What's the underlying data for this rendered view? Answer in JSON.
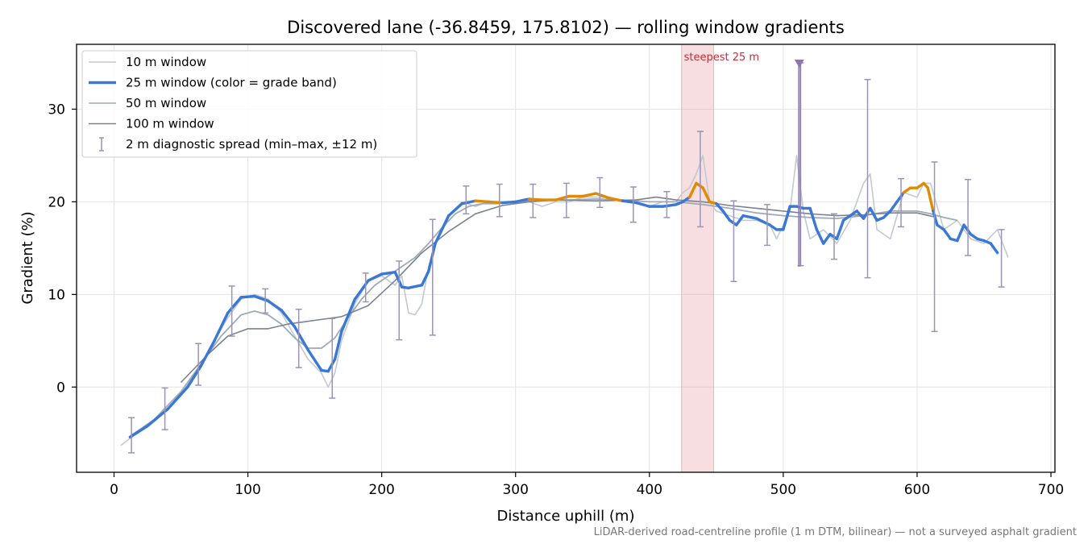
{
  "chart_data": {
    "type": "line",
    "title": "Discovered lane (-36.8459, 175.8102) — rolling window gradients",
    "xlabel": "Distance uphill (m)",
    "ylabel": "Gradient (%)",
    "xlim": [
      -28,
      703
    ],
    "ylim": [
      -9.2,
      37
    ],
    "x_ticks": [
      0,
      100,
      200,
      300,
      400,
      500,
      600,
      700
    ],
    "y_ticks": [
      0,
      10,
      20,
      30
    ],
    "grid": true,
    "legend_position": "top-left",
    "footnote": "LiDAR-derived road-centreline profile (1 m DTM, bilinear) — not a surveyed asphalt gradient",
    "colors": {
      "w10": "#c3c9d1",
      "w25_blue": "#3a78d6",
      "w25_orange": "#e08a00",
      "w50": "#a0aab6",
      "w100": "#7b8290",
      "spread": "#9b93b8",
      "steep_band": "#e8a0a8",
      "steep_text": "#c0303a",
      "marker": "#8a78b0"
    },
    "legend": [
      {
        "key": "w10",
        "label": "10 m window"
      },
      {
        "key": "w25",
        "label": "25 m window (color = grade band)"
      },
      {
        "key": "w50",
        "label": "50 m window"
      },
      {
        "key": "w100",
        "label": "100 m window"
      },
      {
        "key": "spread",
        "label": "2 m diagnostic spread (min–max, ±12 m)"
      }
    ],
    "annotations": {
      "steepest_label": "steepest 25 m",
      "steepest_band": [
        424,
        448
      ],
      "marker": {
        "x": 512,
        "y": 35,
        "ymin": 13,
        "ymax": 35
      }
    },
    "series": [
      {
        "key": "w10",
        "x": [
          5,
          15,
          25,
          35,
          45,
          55,
          65,
          75,
          85,
          95,
          105,
          115,
          125,
          135,
          145,
          155,
          160,
          165,
          170,
          180,
          190,
          200,
          210,
          215,
          220,
          225,
          230,
          235,
          240,
          250,
          260,
          270,
          280,
          290,
          300,
          310,
          320,
          330,
          340,
          350,
          360,
          370,
          380,
          390,
          400,
          410,
          420,
          425,
          430,
          435,
          440,
          445,
          450,
          460,
          470,
          480,
          490,
          495,
          505,
          510,
          515,
          520,
          530,
          540,
          550,
          560,
          565,
          570,
          580,
          590,
          600,
          605,
          610,
          620,
          630,
          640,
          650,
          660,
          668
        ],
        "y": [
          -6.3,
          -5.2,
          -4.2,
          -3,
          -1.5,
          0.3,
          2.5,
          5,
          7.5,
          9.5,
          10,
          9.5,
          8,
          5.5,
          3,
          1.5,
          0,
          1.5,
          5,
          9,
          11.5,
          12,
          11,
          12,
          8,
          7.8,
          9,
          13,
          15.5,
          18.5,
          20,
          19.5,
          20,
          20,
          20,
          20,
          19.5,
          20,
          20,
          20.5,
          20.5,
          20.5,
          20,
          20,
          19.5,
          20,
          20,
          21,
          21.5,
          23,
          25,
          20,
          19,
          18.5,
          18,
          18,
          17.5,
          16,
          19,
          25,
          19,
          16,
          17,
          15.5,
          18,
          22,
          23,
          17,
          16,
          21,
          20.5,
          22,
          22,
          17,
          18,
          16,
          15.5,
          17,
          14
        ]
      },
      {
        "key": "w25",
        "x": [
          12,
          25,
          40,
          55,
          65,
          75,
          85,
          95,
          105,
          115,
          125,
          135,
          145,
          155,
          160,
          165,
          170,
          180,
          190,
          200,
          210,
          215,
          220,
          230,
          235,
          240,
          250,
          260,
          270,
          280,
          290,
          300,
          310,
          320,
          330,
          340,
          350,
          360,
          370,
          380,
          390,
          400,
          410,
          420,
          425,
          430,
          435,
          440,
          445,
          450,
          455,
          460,
          465,
          470,
          480,
          490,
          495,
          500,
          505,
          510,
          515,
          520,
          525,
          530,
          535,
          540,
          545,
          550,
          555,
          560,
          565,
          570,
          575,
          580,
          585,
          590,
          595,
          600,
          605,
          608,
          612,
          615,
          620,
          625,
          630,
          635,
          640,
          645,
          650,
          655,
          660
        ],
        "y": [
          -5.4,
          -4.2,
          -2.4,
          0,
          2.3,
          5,
          8,
          9.7,
          9.8,
          9.3,
          8.3,
          6.5,
          4,
          1.8,
          1.7,
          3,
          6,
          9.5,
          11.5,
          12.2,
          12.4,
          10.8,
          10.7,
          11,
          12.5,
          15.5,
          18.5,
          19.8,
          20.1,
          20,
          19.9,
          20,
          20.3,
          20.2,
          20.2,
          20.6,
          20.6,
          20.9,
          20.4,
          20.1,
          19.9,
          19.5,
          19.5,
          19.7,
          20,
          20.5,
          22,
          21.5,
          20,
          19.8,
          19,
          18,
          17.5,
          18.5,
          18.2,
          17.5,
          17,
          17,
          19.5,
          19.5,
          19.3,
          19.3,
          17,
          15.5,
          16.5,
          16,
          18,
          18.5,
          19,
          18.2,
          19.3,
          18,
          18.3,
          19,
          20,
          21,
          21.5,
          21.5,
          22,
          21.5,
          19,
          17.5,
          17,
          16,
          15.8,
          17.5,
          16.5,
          16,
          15.8,
          15.5,
          14.5
        ],
        "band_colors": [
          "b",
          "b",
          "b",
          "b",
          "b",
          "b",
          "b",
          "b",
          "b",
          "b",
          "b",
          "b",
          "b",
          "b",
          "b",
          "b",
          "b",
          "b",
          "b",
          "b",
          "b",
          "b",
          "b",
          "b",
          "b",
          "b",
          "b",
          "b",
          "o",
          "o",
          "b",
          "b",
          "o",
          "o",
          "o",
          "o",
          "o",
          "o",
          "o",
          "b",
          "b",
          "b",
          "b",
          "b",
          "b",
          "o",
          "o",
          "o",
          "o",
          "b",
          "b",
          "b",
          "b",
          "b",
          "b",
          "b",
          "b",
          "b",
          "b",
          "b",
          "b",
          "b",
          "b",
          "b",
          "b",
          "b",
          "b",
          "b",
          "b",
          "b",
          "b",
          "b",
          "b",
          "b",
          "b",
          "o",
          "o",
          "o",
          "o",
          "o",
          "b",
          "b",
          "b",
          "b",
          "b",
          "b",
          "b",
          "b",
          "b",
          "b",
          "b"
        ]
      },
      {
        "key": "w50",
        "x": [
          12,
          30,
          50,
          65,
          80,
          95,
          105,
          115,
          125,
          135,
          145,
          155,
          165,
          175,
          185,
          195,
          205,
          215,
          225,
          235,
          245,
          255,
          265,
          275,
          285,
          300,
          320,
          340,
          360,
          380,
          400,
          420,
          440,
          460,
          480,
          500,
          520,
          540,
          560,
          580,
          600,
          610,
          620,
          630
        ],
        "y": [
          -5.3,
          -3.5,
          -0.5,
          2.5,
          5.5,
          7.8,
          8.2,
          7.8,
          6.8,
          5.3,
          4.2,
          4.2,
          5.3,
          7.5,
          9.5,
          11,
          12,
          13,
          14,
          15.5,
          17.2,
          18.7,
          19.5,
          19.8,
          19.8,
          20,
          20.2,
          20.2,
          20.3,
          20.2,
          20,
          20,
          19.7,
          19.3,
          18.8,
          18.5,
          18.3,
          18.2,
          18.5,
          19,
          19,
          18.7,
          18.3,
          18
        ]
      },
      {
        "key": "w100",
        "x": [
          50,
          70,
          85,
          100,
          115,
          130,
          150,
          170,
          190,
          210,
          230,
          250,
          270,
          290,
          310,
          330,
          360,
          390,
          405,
          420,
          440,
          460,
          480,
          500,
          520,
          540,
          560,
          580,
          600,
          612
        ],
        "y": [
          0.5,
          3.5,
          5.5,
          6.3,
          6.3,
          6.8,
          7.2,
          7.6,
          8.8,
          11.5,
          14.5,
          16.8,
          18.7,
          19.6,
          20,
          20.2,
          20.1,
          20.2,
          20.5,
          20.2,
          20,
          19.6,
          19.3,
          19,
          18.7,
          18.5,
          18.6,
          18.8,
          18.8,
          18.4
        ]
      }
    ],
    "spread": [
      {
        "x": 13,
        "min": -7.1,
        "max": -3.3
      },
      {
        "x": 38,
        "min": -4.6,
        "max": -0.1
      },
      {
        "x": 63,
        "min": 0.2,
        "max": 4.7
      },
      {
        "x": 88,
        "min": 5.5,
        "max": 10.9
      },
      {
        "x": 113,
        "min": 8.0,
        "max": 10.6
      },
      {
        "x": 138,
        "min": 2.1,
        "max": 8.4
      },
      {
        "x": 163,
        "min": -1.2,
        "max": 7.4
      },
      {
        "x": 188,
        "min": 9.2,
        "max": 12.3
      },
      {
        "x": 213,
        "min": 5.1,
        "max": 13.6
      },
      {
        "x": 238,
        "min": 5.6,
        "max": 18.1
      },
      {
        "x": 263,
        "min": 18.7,
        "max": 21.7
      },
      {
        "x": 288,
        "min": 18.4,
        "max": 21.9
      },
      {
        "x": 313,
        "min": 18.3,
        "max": 21.9
      },
      {
        "x": 338,
        "min": 18.3,
        "max": 22.0
      },
      {
        "x": 363,
        "min": 19.4,
        "max": 22.6
      },
      {
        "x": 388,
        "min": 17.8,
        "max": 21.6
      },
      {
        "x": 413,
        "min": 18.3,
        "max": 21.1
      },
      {
        "x": 438,
        "min": 17.3,
        "max": 27.6
      },
      {
        "x": 463,
        "min": 11.4,
        "max": 20.1
      },
      {
        "x": 488,
        "min": 15.3,
        "max": 19.7
      },
      {
        "x": 513,
        "min": 13.1,
        "max": 35.0
      },
      {
        "x": 538,
        "min": 13.8,
        "max": 18.7
      },
      {
        "x": 563,
        "min": 11.8,
        "max": 33.2
      },
      {
        "x": 588,
        "min": 17.3,
        "max": 22.5
      },
      {
        "x": 613,
        "min": 6.0,
        "max": 24.3
      },
      {
        "x": 638,
        "min": 14.2,
        "max": 22.4
      },
      {
        "x": 663,
        "min": 10.8,
        "max": 17.0
      }
    ]
  }
}
